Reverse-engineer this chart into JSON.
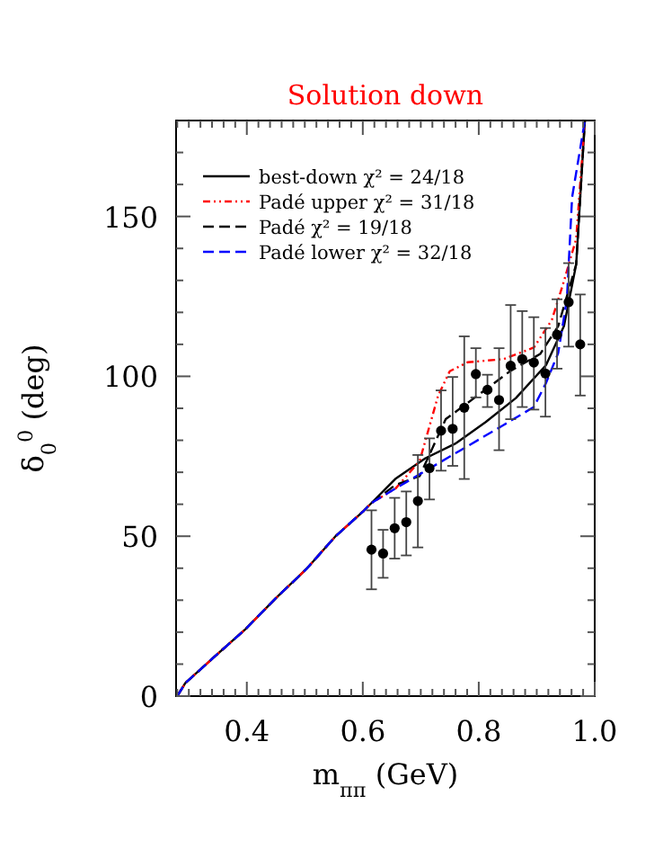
{
  "chart_data": {
    "type": "line",
    "title": "Solution down",
    "xlabel": "m$_{ππ}$ (GeV)",
    "ylabel": "δ$_{0}$$^{0}$ (deg)",
    "xlim": [
      0.278,
      1.0
    ],
    "ylim": [
      0,
      180
    ],
    "xticks": [
      {
        "value": 0.28,
        "label": null
      },
      {
        "value": 0.3,
        "label": null
      },
      {
        "value": 0.32,
        "label": null
      },
      {
        "value": 0.34,
        "label": null
      },
      {
        "value": 0.36,
        "label": null
      },
      {
        "value": 0.38,
        "label": null
      },
      {
        "value": 0.4,
        "label": "0.4"
      },
      {
        "value": 0.42,
        "label": null
      },
      {
        "value": 0.44,
        "label": null
      },
      {
        "value": 0.46,
        "label": null
      },
      {
        "value": 0.48,
        "label": null
      },
      {
        "value": 0.5,
        "label": null
      },
      {
        "value": 0.52,
        "label": null
      },
      {
        "value": 0.54,
        "label": null
      },
      {
        "value": 0.56,
        "label": null
      },
      {
        "value": 0.58,
        "label": null
      },
      {
        "value": 0.6,
        "label": "0.6"
      },
      {
        "value": 0.62,
        "label": null
      },
      {
        "value": 0.64,
        "label": null
      },
      {
        "value": 0.66,
        "label": null
      },
      {
        "value": 0.68,
        "label": null
      },
      {
        "value": 0.7,
        "label": null
      },
      {
        "value": 0.72,
        "label": null
      },
      {
        "value": 0.74,
        "label": null
      },
      {
        "value": 0.76,
        "label": null
      },
      {
        "value": 0.78,
        "label": null
      },
      {
        "value": 0.8,
        "label": "0.8"
      },
      {
        "value": 0.82,
        "label": null
      },
      {
        "value": 0.84,
        "label": null
      },
      {
        "value": 0.86,
        "label": null
      },
      {
        "value": 0.88,
        "label": null
      },
      {
        "value": 0.9,
        "label": null
      },
      {
        "value": 0.92,
        "label": null
      },
      {
        "value": 0.94,
        "label": null
      },
      {
        "value": 0.96,
        "label": null
      },
      {
        "value": 0.98,
        "label": null
      },
      {
        "value": 1.0,
        "label": "1.0"
      }
    ],
    "yticks": [
      0,
      {
        "value": 10,
        "label": null
      },
      {
        "value": 20,
        "label": null
      },
      {
        "value": 30,
        "label": null
      },
      {
        "value": 40,
        "label": null
      },
      50,
      {
        "value": 60,
        "label": null
      },
      {
        "value": 70,
        "label": null
      },
      {
        "value": 80,
        "label": null
      },
      {
        "value": 90,
        "label": null
      },
      100,
      {
        "value": 110,
        "label": null
      },
      {
        "value": 120,
        "label": null
      },
      {
        "value": 130,
        "label": null
      },
      {
        "value": 140,
        "label": null
      },
      150,
      {
        "value": 160,
        "label": null
      },
      {
        "value": 170,
        "label": null
      }
    ],
    "legend": "top left",
    "grid": false,
    "series": [
      {
        "name": "best-down  χ² = 24/18",
        "color": "#000000",
        "line_style": "solid",
        "x": [
          0.28,
          0.294,
          0.346,
          0.398,
          0.45,
          0.502,
          0.553,
          0.602,
          0.615,
          0.656,
          0.708,
          0.76,
          0.812,
          0.864,
          0.916,
          0.947,
          0.968,
          0.983
        ],
        "values": [
          0,
          4.1,
          12.6,
          21,
          30.6,
          39.6,
          50,
          58,
          60.4,
          67.9,
          74.4,
          79,
          85.7,
          93.2,
          103.5,
          115.7,
          135,
          180
        ]
      },
      {
        "name": "Padé upper  χ² = 31/18",
        "color": "#ff0000",
        "line_style": "dotted",
        "x": [
          0.28,
          0.294,
          0.346,
          0.398,
          0.45,
          0.502,
          0.553,
          0.602,
          0.615,
          0.657,
          0.698,
          0.73,
          0.75,
          0.781,
          0.843,
          0.895,
          0.926,
          0.947,
          0.968,
          0.983
        ],
        "values": [
          0,
          4.1,
          12.6,
          21,
          30.6,
          39.6,
          50,
          58,
          60.4,
          65,
          73.5,
          94,
          101.6,
          104.4,
          105.4,
          109,
          117.6,
          129.8,
          143,
          180
        ]
      },
      {
        "name": "Padé  χ² = 19/18",
        "color": "#000000",
        "line_style": "dashed",
        "x": [
          0.28,
          0.294,
          0.346,
          0.398,
          0.45,
          0.502,
          0.553,
          0.602,
          0.615,
          0.656,
          0.698,
          0.743,
          0.792,
          0.854,
          0.906,
          0.937,
          0.968,
          0.983
        ],
        "values": [
          0,
          4.1,
          12.6,
          21,
          30.6,
          39.6,
          50,
          58,
          60.4,
          66,
          68.8,
          86.6,
          93.2,
          101.6,
          107,
          115.7,
          135,
          180
        ]
      },
      {
        "name": "Padé lower  χ² = 32/18",
        "color": "#0000ff",
        "line_style": "dashed",
        "x": [
          0.28,
          0.294,
          0.346,
          0.398,
          0.45,
          0.502,
          0.553,
          0.602,
          0.615,
          0.657,
          0.719,
          0.781,
          0.843,
          0.895,
          0.916,
          0.937,
          0.952,
          0.961,
          0.983
        ],
        "values": [
          0,
          4.1,
          12.6,
          21,
          30.6,
          39.6,
          50,
          58,
          60.4,
          65,
          71.6,
          78.2,
          84.8,
          90.4,
          97.9,
          107.3,
          124,
          156,
          180
        ]
      },
      {
        "type": "scatter",
        "color": "#000000",
        "marker": "circle",
        "x": [
          0.615,
          0.635,
          0.655,
          0.675,
          0.695,
          0.715,
          0.735,
          0.755,
          0.775,
          0.795,
          0.815,
          0.835,
          0.855,
          0.875,
          0.895,
          0.915,
          0.935,
          0.955,
          0.975
        ],
        "values": [
          45.8,
          44.6,
          52.5,
          54.4,
          61,
          71.3,
          83,
          83.6,
          90.2,
          100.7,
          95.8,
          92.6,
          103.3,
          105.4,
          104.3,
          100.9,
          113,
          123.2,
          110
        ],
        "errors": [
          [
            33.4,
            58.1
          ],
          [
            37,
            52
          ],
          [
            43,
            62
          ],
          [
            44,
            64
          ],
          [
            46.5,
            75.4
          ],
          [
            61.5,
            80.6
          ],
          [
            70.5,
            95.6
          ],
          [
            72,
            99.8
          ],
          [
            67.9,
            112.5
          ],
          [
            93.4,
            108.8
          ],
          [
            90.4,
            100.5
          ],
          [
            76.9,
            108.8
          ],
          [
            86.6,
            122.3
          ],
          [
            90.4,
            120.4
          ],
          [
            89.6,
            118.5
          ],
          [
            87.4,
            115.1
          ],
          [
            102.4,
            124.1
          ],
          [
            109.3,
            135.4
          ],
          [
            94,
            125.6
          ]
        ]
      }
    ]
  }
}
